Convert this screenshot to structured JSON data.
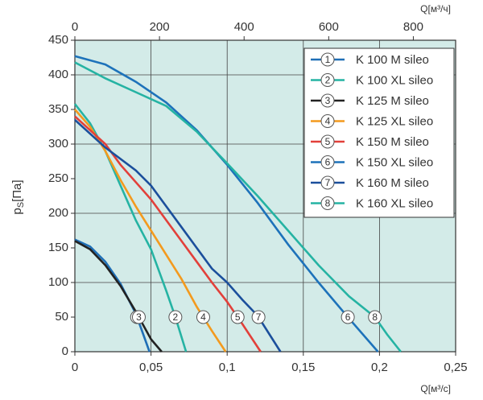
{
  "chart_data": {
    "type": "line",
    "ylabel": {
      "symbol": "p",
      "subscript": "S",
      "unit": "[Па]"
    },
    "xlabel": "Q[м³/с]",
    "x2label": "Q[м³/ч]",
    "xlim": [
      0,
      0.25
    ],
    "xticks": [
      0,
      {
        "value": 0.05,
        "label": "0,05"
      },
      {
        "value": 0.1,
        "label": "0,1"
      },
      {
        "value": 0.15,
        "label": "0,15"
      },
      {
        "value": 0.2,
        "label": "0,2"
      },
      {
        "value": 0.25,
        "label": "0,25"
      }
    ],
    "x2lim": [
      0,
      900
    ],
    "x2ticks": [
      0,
      200,
      400,
      600,
      800
    ],
    "ylim": [
      0,
      450
    ],
    "yticks": [
      0,
      50,
      100,
      150,
      200,
      250,
      300,
      350,
      400,
      450
    ],
    "grid": true,
    "background": "#d3ebe8",
    "marker_level": 50,
    "series": [
      {
        "name": "K 100 M sileo",
        "marker": "1",
        "color": "#1f6fb6",
        "x": [
          0,
          0.01,
          0.02,
          0.03,
          0.04,
          0.049
        ],
        "values": [
          162,
          152,
          130,
          98,
          55,
          0
        ]
      },
      {
        "name": "K 100 XL sileo",
        "marker": "2",
        "color": "#25b3a3",
        "x": [
          0,
          0.01,
          0.02,
          0.03,
          0.04,
          0.05,
          0.06,
          0.066,
          0.073
        ],
        "values": [
          358,
          330,
          290,
          240,
          190,
          148,
          88,
          50,
          0
        ]
      },
      {
        "name": "K 125 M sileo",
        "marker": "3",
        "color": "#222222",
        "x": [
          0,
          0.01,
          0.02,
          0.03,
          0.04,
          0.05,
          0.057
        ],
        "values": [
          160,
          148,
          125,
          95,
          58,
          18,
          0
        ]
      },
      {
        "name": "K 125 XL sileo",
        "marker": "4",
        "color": "#f39a1e",
        "x": [
          0,
          0.01,
          0.02,
          0.03,
          0.04,
          0.05,
          0.06,
          0.07,
          0.08,
          0.09,
          0.099
        ],
        "values": [
          350,
          325,
          290,
          248,
          210,
          175,
          140,
          105,
          65,
          30,
          0
        ]
      },
      {
        "name": "K 150 M sileo",
        "marker": "5",
        "color": "#e2403a",
        "x": [
          0,
          0.02,
          0.03,
          0.04,
          0.05,
          0.06,
          0.07,
          0.08,
          0.09,
          0.1,
          0.11,
          0.122
        ],
        "values": [
          340,
          300,
          270,
          245,
          220,
          190,
          160,
          130,
          100,
          72,
          40,
          0
        ]
      },
      {
        "name": "K 150 XL sileo",
        "marker": "6",
        "color": "#1d72ba",
        "x": [
          0,
          0.02,
          0.04,
          0.06,
          0.08,
          0.1,
          0.12,
          0.14,
          0.16,
          0.18,
          0.199
        ],
        "values": [
          427,
          415,
          390,
          360,
          320,
          270,
          215,
          155,
          100,
          48,
          0
        ]
      },
      {
        "name": "K 160 M sileo",
        "marker": "7",
        "color": "#1b4f9c",
        "x": [
          0,
          0.02,
          0.04,
          0.05,
          0.06,
          0.07,
          0.08,
          0.09,
          0.1,
          0.11,
          0.12,
          0.135
        ],
        "values": [
          335,
          295,
          262,
          240,
          210,
          180,
          150,
          120,
          100,
          75,
          52,
          0
        ]
      },
      {
        "name": "K 160 XL sileo",
        "marker": "8",
        "color": "#25b3a3",
        "x": [
          0,
          0.02,
          0.04,
          0.06,
          0.08,
          0.1,
          0.12,
          0.14,
          0.16,
          0.18,
          0.197,
          0.205,
          0.214
        ],
        "values": [
          418,
          395,
          375,
          355,
          318,
          272,
          225,
          175,
          125,
          80,
          50,
          25,
          0
        ]
      }
    ]
  }
}
